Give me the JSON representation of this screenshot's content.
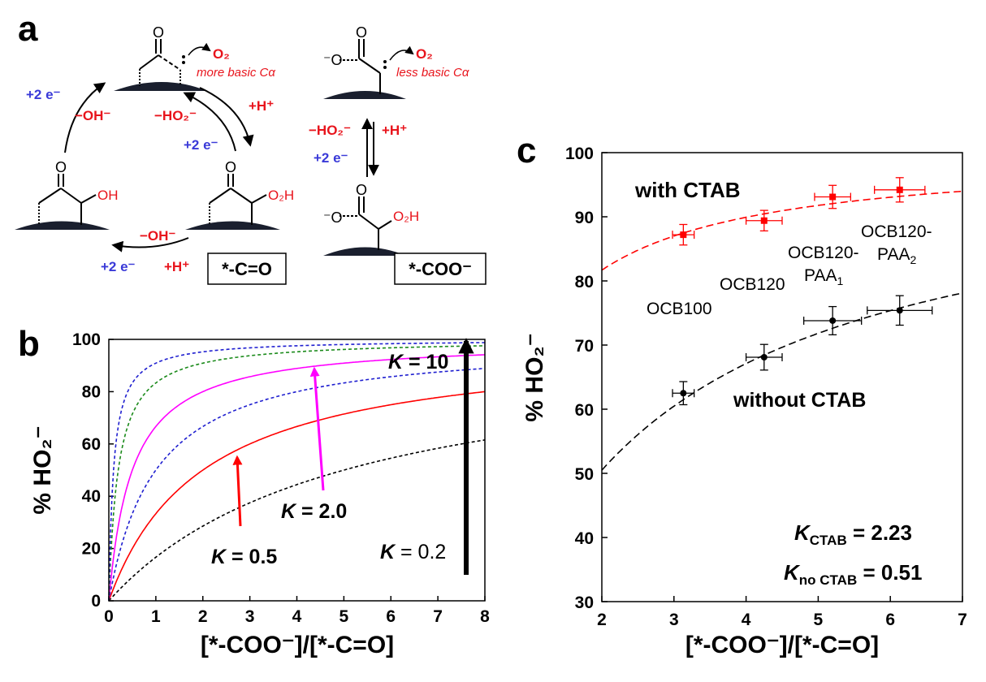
{
  "panel_letters": {
    "a": "a",
    "b": "b",
    "c": "c"
  },
  "scheme": {
    "plus2e": "+2 e⁻",
    "minus_oh": "−OH⁻",
    "minus_ho2": "−HO₂⁻",
    "plus_h": "+H⁺",
    "o2": "O₂",
    "more_basic": "more basic Cα",
    "less_basic": "less basic Cα",
    "box_carbonyl": "*-C=O",
    "box_carboxylate": "*-COO⁻",
    "oh_group": "OH",
    "o2h_group": "O₂H",
    "o_atom": "O",
    "minus_o": "⁻O",
    "colors": {
      "red": "#e8141c",
      "blue": "#3a3ad8",
      "black": "#000000"
    }
  },
  "chart_data": [
    {
      "panel": "b",
      "type": "line",
      "xlabel": "[*-COO⁻]/[*-C=O]",
      "ylabel": "% HO₂⁻",
      "xlim": [
        0,
        8
      ],
      "ylim": [
        0,
        100
      ],
      "xticks": [
        0,
        1,
        2,
        3,
        4,
        5,
        6,
        7,
        8
      ],
      "yticks": [
        0,
        20,
        40,
        60,
        80,
        100
      ],
      "series": [
        {
          "K": 0.2,
          "color": "#000000",
          "dashed": true
        },
        {
          "K": 0.5,
          "color": "#ff0000",
          "dashed": false
        },
        {
          "K": 1.0,
          "color": "#1f1fd0",
          "dashed": true
        },
        {
          "K": 2.0,
          "color": "#ff00ff",
          "dashed": false
        },
        {
          "K": 5.0,
          "color": "#1a8a1a",
          "dashed": true
        },
        {
          "K": 10,
          "color": "#1f1fd0",
          "dashed": true
        }
      ],
      "annotations": {
        "k10": {
          "k": "K",
          "rest": " = 10",
          "color": "#3b5fa8"
        },
        "k2": {
          "k": "K",
          "rest": " = 2.0",
          "color": "#ff00ff"
        },
        "k05": {
          "k": "K",
          "rest": " = 0.5",
          "color": "#ff0044"
        },
        "k02": {
          "k": "K",
          "rest": " = 0.2",
          "color": "#000000"
        }
      }
    },
    {
      "panel": "c",
      "type": "scatter",
      "xlabel": "[*-COO⁻]/[*-C=O]",
      "ylabel": "% HO₂⁻",
      "xlim": [
        2,
        7
      ],
      "ylim": [
        30,
        100
      ],
      "xticks": [
        2,
        3,
        4,
        5,
        6,
        7
      ],
      "yticks": [
        30,
        40,
        50,
        60,
        70,
        80,
        90,
        100
      ],
      "series": [
        {
          "name": "with CTAB",
          "color": "#ff0000",
          "K": 2.23,
          "points": [
            {
              "x": 3.13,
              "y": 87.2,
              "xerr": 0.15,
              "yerr": 1.6
            },
            {
              "x": 4.25,
              "y": 89.4,
              "xerr": 0.25,
              "yerr": 1.6
            },
            {
              "x": 5.2,
              "y": 93.1,
              "xerr": 0.25,
              "yerr": 1.8
            },
            {
              "x": 6.13,
              "y": 94.2,
              "xerr": 0.35,
              "yerr": 1.9
            }
          ]
        },
        {
          "name": "without CTAB",
          "color": "#000000",
          "K": 0.51,
          "points": [
            {
              "x": 3.13,
              "y": 62.5,
              "xerr": 0.15,
              "yerr": 1.8
            },
            {
              "x": 4.25,
              "y": 68.1,
              "xerr": 0.25,
              "yerr": 2.0
            },
            {
              "x": 5.2,
              "y": 73.8,
              "xerr": 0.4,
              "yerr": 2.2
            },
            {
              "x": 6.13,
              "y": 75.4,
              "xerr": 0.45,
              "yerr": 2.3
            }
          ]
        }
      ],
      "labels": {
        "with_ctab": "with CTAB",
        "without_ctab": "without CTAB",
        "ocb100": "OCB100",
        "ocb120": "OCB120",
        "ocb120_paa1_line1": "OCB120-",
        "ocb120_paa1_line2": "PAA",
        "ocb120_paa1_sub": "1",
        "ocb120_paa2_line1": "OCB120-",
        "ocb120_paa2_line2": "PAA",
        "ocb120_paa2_sub": "2",
        "k_ctab_main": "K",
        "k_ctab_sub": "CTAB",
        "k_ctab_val": " = 2.23",
        "k_noctab_main": "K",
        "k_noctab_sub": "no CTAB",
        "k_noctab_val": " = 0.51"
      }
    }
  ]
}
